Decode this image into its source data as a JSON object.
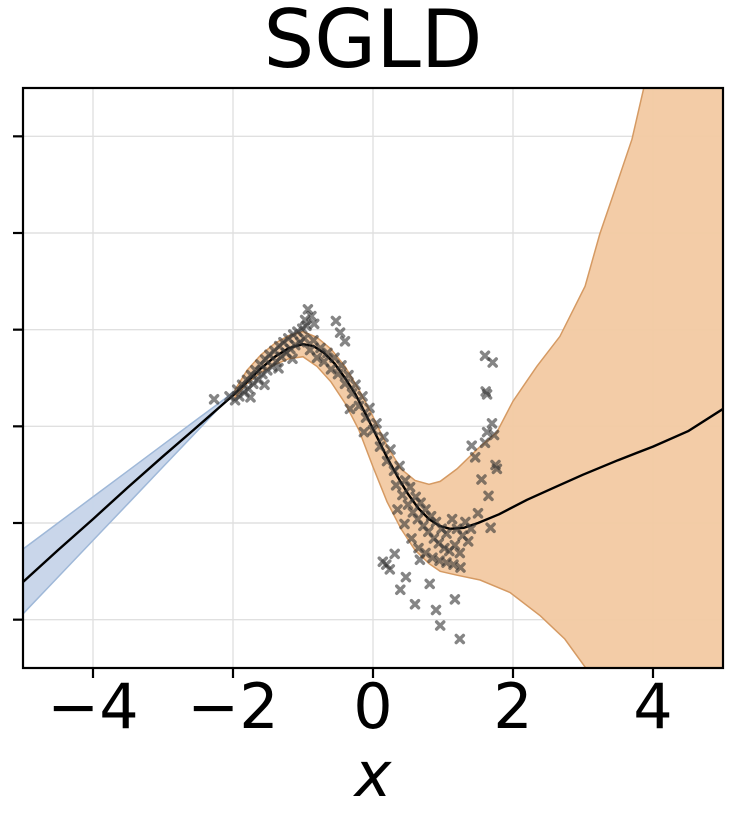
{
  "chart_data": {
    "type": "line",
    "title": "SGLD",
    "xlabel": "x",
    "xlim": [
      -5,
      5
    ],
    "ylim": [
      -2.5,
      3.5
    ],
    "x_ticks": [
      -4,
      -2,
      0,
      2,
      4
    ],
    "x_tick_labels": [
      "−4",
      "−2",
      "0",
      "2",
      "4"
    ],
    "y_gridlines": [
      -2,
      -1,
      0,
      1,
      2,
      3
    ],
    "y_tick_labels_visible": false,
    "grid": true,
    "grid_color": "#e0e0e0",
    "spine_color": "#000000",
    "background": "#ffffff",
    "bands": [
      {
        "name": "extrapolation-band-left",
        "fill": "#c6d4e9",
        "edge": "#9fb8d8",
        "upper": [
          [
            -5,
            -1.27
          ],
          [
            -4.5,
            -1.0
          ],
          [
            -4,
            -0.73
          ],
          [
            -3.5,
            -0.46
          ],
          [
            -3,
            -0.19
          ],
          [
            -2.5,
            0.08
          ],
          [
            -2.2,
            0.24
          ],
          [
            -2.0,
            0.35
          ],
          [
            -1.88,
            0.43
          ]
        ],
        "lower": [
          [
            -5,
            -1.94
          ],
          [
            -4.5,
            -1.56
          ],
          [
            -4,
            -1.18
          ],
          [
            -3.5,
            -0.8
          ],
          [
            -3,
            -0.42
          ],
          [
            -2.5,
            -0.04
          ],
          [
            -2.2,
            0.19
          ],
          [
            -2.0,
            0.32
          ],
          [
            -1.88,
            0.41
          ]
        ]
      },
      {
        "name": "predictive-uncertainty-band",
        "fill": "#f2c9a2",
        "edge": "#d59a63",
        "upper": [
          [
            -1.97,
            0.38
          ],
          [
            -1.8,
            0.58
          ],
          [
            -1.6,
            0.74
          ],
          [
            -1.4,
            0.86
          ],
          [
            -1.2,
            0.94
          ],
          [
            -1.0,
            0.98
          ],
          [
            -0.8,
            0.92
          ],
          [
            -0.6,
            0.8
          ],
          [
            -0.4,
            0.62
          ],
          [
            -0.2,
            0.38
          ],
          [
            0,
            0.1
          ],
          [
            0.2,
            -0.2
          ],
          [
            0.4,
            -0.44
          ],
          [
            0.6,
            -0.56
          ],
          [
            0.8,
            -0.6
          ],
          [
            0.96,
            -0.57
          ],
          [
            1.2,
            -0.44
          ],
          [
            1.5,
            -0.23
          ],
          [
            1.77,
            -0.06
          ],
          [
            2.0,
            0.26
          ],
          [
            2.34,
            0.62
          ],
          [
            2.67,
            0.93
          ],
          [
            3.03,
            1.45
          ],
          [
            3.24,
            1.99
          ],
          [
            3.41,
            2.35
          ],
          [
            3.7,
            2.97
          ],
          [
            3.9,
            3.6
          ],
          [
            5.0,
            3.6
          ]
        ],
        "lower": [
          [
            -1.97,
            0.3
          ],
          [
            -1.8,
            0.44
          ],
          [
            -1.6,
            0.56
          ],
          [
            -1.4,
            0.64
          ],
          [
            -1.2,
            0.7
          ],
          [
            -1.0,
            0.72
          ],
          [
            -0.8,
            0.62
          ],
          [
            -0.6,
            0.46
          ],
          [
            -0.4,
            0.24
          ],
          [
            -0.2,
            -0.04
          ],
          [
            0,
            -0.42
          ],
          [
            0.2,
            -0.78
          ],
          [
            0.4,
            -1.06
          ],
          [
            0.6,
            -1.28
          ],
          [
            0.8,
            -1.42
          ],
          [
            0.96,
            -1.5
          ],
          [
            1.2,
            -1.54
          ],
          [
            1.53,
            -1.59
          ],
          [
            1.96,
            -1.72
          ],
          [
            2.39,
            -1.96
          ],
          [
            2.74,
            -2.2
          ],
          [
            3.14,
            -2.6
          ],
          [
            5.0,
            -2.6
          ]
        ]
      }
    ],
    "mean_line": {
      "name": "mean-prediction",
      "color": "#000000",
      "width": 2.4,
      "points": [
        [
          -5,
          -1.61
        ],
        [
          -4.5,
          -1.28
        ],
        [
          -4,
          -0.96
        ],
        [
          -3.5,
          -0.63
        ],
        [
          -3,
          -0.31
        ],
        [
          -2.6,
          -0.06
        ],
        [
          -2.3,
          0.13
        ],
        [
          -2.0,
          0.32
        ],
        [
          -1.8,
          0.46
        ],
        [
          -1.6,
          0.6
        ],
        [
          -1.4,
          0.72
        ],
        [
          -1.2,
          0.81
        ],
        [
          -1.0,
          0.85
        ],
        [
          -0.85,
          0.83
        ],
        [
          -0.7,
          0.76
        ],
        [
          -0.55,
          0.65
        ],
        [
          -0.4,
          0.5
        ],
        [
          -0.25,
          0.33
        ],
        [
          -0.1,
          0.12
        ],
        [
          0.05,
          -0.1
        ],
        [
          0.2,
          -0.32
        ],
        [
          0.35,
          -0.52
        ],
        [
          0.5,
          -0.7
        ],
        [
          0.65,
          -0.85
        ],
        [
          0.8,
          -0.96
        ],
        [
          0.95,
          -1.03
        ],
        [
          1.1,
          -1.06
        ],
        [
          1.3,
          -1.05
        ],
        [
          1.5,
          -1.0
        ],
        [
          1.8,
          -0.91
        ],
        [
          2.2,
          -0.76
        ],
        [
          2.6,
          -0.63
        ],
        [
          3.0,
          -0.5
        ],
        [
          3.5,
          -0.35
        ],
        [
          4.0,
          -0.21
        ],
        [
          4.5,
          -0.05
        ],
        [
          5.0,
          0.18
        ]
      ]
    },
    "scatter": {
      "name": "observations",
      "marker": "X",
      "color": "#333333",
      "opacity": 0.6,
      "size": 10.5,
      "points": [
        [
          -2.27,
          0.28
        ],
        [
          -2.05,
          0.31
        ],
        [
          -1.97,
          0.27
        ],
        [
          -1.94,
          0.38
        ],
        [
          -1.91,
          0.31
        ],
        [
          -1.87,
          0.43
        ],
        [
          -1.84,
          0.35
        ],
        [
          -1.8,
          0.48
        ],
        [
          -1.78,
          0.39
        ],
        [
          -1.74,
          0.53
        ],
        [
          -1.71,
          0.44
        ],
        [
          -1.75,
          0.3
        ],
        [
          -1.68,
          0.58
        ],
        [
          -1.64,
          0.48
        ],
        [
          -1.61,
          0.64
        ],
        [
          -1.58,
          0.54
        ],
        [
          -1.55,
          0.43
        ],
        [
          -1.54,
          0.69
        ],
        [
          -1.51,
          0.58
        ],
        [
          -1.48,
          0.74
        ],
        [
          -1.44,
          0.62
        ],
        [
          -1.41,
          0.78
        ],
        [
          -1.38,
          0.67
        ],
        [
          -1.35,
          0.6
        ],
        [
          -1.34,
          0.83
        ],
        [
          -1.31,
          0.72
        ],
        [
          -1.28,
          0.87
        ],
        [
          -1.24,
          0.76
        ],
        [
          -1.21,
          0.91
        ],
        [
          -1.18,
          0.8
        ],
        [
          -1.15,
          0.7
        ],
        [
          -1.14,
          0.95
        ],
        [
          -1.11,
          0.84
        ],
        [
          -1.08,
          0.98
        ],
        [
          -1.04,
          0.87
        ],
        [
          -1.01,
          1.01
        ],
        [
          -0.98,
          0.91
        ],
        [
          -0.95,
          1.04
        ],
        [
          -0.93,
          1.21
        ],
        [
          -0.88,
          1.14
        ],
        [
          -0.97,
          1.1
        ],
        [
          -0.84,
          1.06
        ],
        [
          -0.9,
          0.79
        ],
        [
          -0.85,
          0.89
        ],
        [
          -0.8,
          0.71
        ],
        [
          -0.75,
          0.81
        ],
        [
          -0.7,
          0.67
        ],
        [
          -0.65,
          0.76
        ],
        [
          -0.6,
          0.59
        ],
        [
          -0.55,
          0.71
        ],
        [
          -0.53,
          1.09
        ],
        [
          -0.5,
          0.54
        ],
        [
          -0.47,
          0.97
        ],
        [
          -0.45,
          0.63
        ],
        [
          -0.4,
          0.88
        ],
        [
          -0.4,
          0.44
        ],
        [
          -0.35,
          0.53
        ],
        [
          -0.33,
          0.18
        ],
        [
          -0.3,
          0.34
        ],
        [
          -0.25,
          0.43
        ],
        [
          -0.2,
          0.21
        ],
        [
          -0.15,
          0.31
        ],
        [
          -0.13,
          -0.06
        ],
        [
          -0.1,
          0.09
        ],
        [
          -0.05,
          0.19
        ],
        [
          0.0,
          -0.04
        ],
        [
          0.05,
          0.03
        ],
        [
          0.1,
          -0.21
        ],
        [
          0.15,
          -0.11
        ],
        [
          0.2,
          -0.36
        ],
        [
          0.25,
          -0.24
        ],
        [
          0.3,
          -0.46
        ],
        [
          0.33,
          -0.61
        ],
        [
          0.35,
          -0.86
        ],
        [
          0.38,
          -0.41
        ],
        [
          0.42,
          -0.71
        ],
        [
          0.45,
          -1.01
        ],
        [
          0.46,
          -0.56
        ],
        [
          0.5,
          -0.81
        ],
        [
          0.53,
          -0.63
        ],
        [
          0.55,
          -1.16
        ],
        [
          0.57,
          -0.89
        ],
        [
          0.61,
          -0.73
        ],
        [
          0.64,
          -0.96
        ],
        [
          0.65,
          -1.26
        ],
        [
          0.68,
          -0.79
        ],
        [
          0.72,
          -1.03
        ],
        [
          0.75,
          -0.86
        ],
        [
          0.75,
          -1.31
        ],
        [
          0.79,
          -1.09
        ],
        [
          0.83,
          -0.93
        ],
        [
          0.85,
          -1.36
        ],
        [
          0.87,
          -1.16
        ],
        [
          0.9,
          -0.99
        ],
        [
          0.94,
          -1.21
        ],
        [
          0.95,
          -1.39
        ],
        [
          0.98,
          -1.06
        ],
        [
          1.02,
          -1.26
        ],
        [
          1.05,
          -1.11
        ],
        [
          1.05,
          -1.41
        ],
        [
          1.09,
          -1.29
        ],
        [
          1.13,
          -0.96
        ],
        [
          1.15,
          -1.43
        ],
        [
          1.17,
          -1.23
        ],
        [
          1.2,
          -1.06
        ],
        [
          1.24,
          -1.31
        ],
        [
          1.25,
          -1.46
        ],
        [
          1.28,
          -1.13
        ],
        [
          1.32,
          -0.99
        ],
        [
          1.36,
          -1.19
        ],
        [
          1.4,
          -1.06
        ],
        [
          0.14,
          -1.4
        ],
        [
          0.19,
          -1.43
        ],
        [
          0.24,
          -1.48
        ],
        [
          0.31,
          -1.32
        ],
        [
          0.39,
          -1.69
        ],
        [
          0.47,
          -1.56
        ],
        [
          0.6,
          -1.84
        ],
        [
          0.67,
          -1.38
        ],
        [
          0.81,
          -1.63
        ],
        [
          0.9,
          -1.9
        ],
        [
          0.96,
          -2.06
        ],
        [
          1.17,
          -1.79
        ],
        [
          1.24,
          -2.2
        ],
        [
          1.6,
          0.73
        ],
        [
          1.71,
          0.66
        ],
        [
          1.61,
          0.36
        ],
        [
          1.63,
          0.33
        ],
        [
          1.7,
          0.03
        ],
        [
          1.63,
          -0.06
        ],
        [
          1.73,
          -0.09
        ],
        [
          1.41,
          -0.2
        ],
        [
          1.6,
          -0.17
        ],
        [
          1.46,
          -0.32
        ],
        [
          1.55,
          -0.55
        ],
        [
          1.65,
          -0.72
        ],
        [
          1.5,
          -0.9
        ],
        [
          1.68,
          -1.05
        ],
        [
          1.75,
          -0.4
        ],
        [
          1.77,
          -0.44
        ]
      ]
    }
  }
}
